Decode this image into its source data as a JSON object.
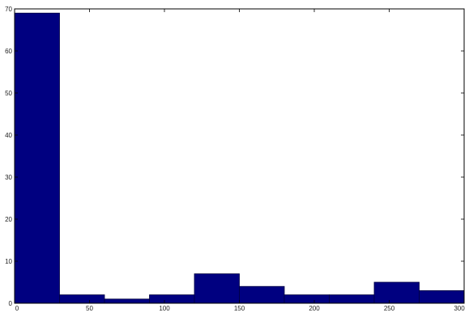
{
  "chart_data": {
    "type": "bar",
    "title": "",
    "xlabel": "",
    "ylabel": "",
    "xlim": [
      0,
      300
    ],
    "ylim": [
      0,
      70
    ],
    "grid": false,
    "bin_width": 30,
    "bins": [
      {
        "start": 0,
        "end": 30,
        "value": 69
      },
      {
        "start": 30,
        "end": 60,
        "value": 2
      },
      {
        "start": 60,
        "end": 90,
        "value": 1
      },
      {
        "start": 90,
        "end": 120,
        "value": 2
      },
      {
        "start": 120,
        "end": 150,
        "value": 7
      },
      {
        "start": 150,
        "end": 180,
        "value": 4
      },
      {
        "start": 180,
        "end": 210,
        "value": 2
      },
      {
        "start": 210,
        "end": 240,
        "value": 2
      },
      {
        "start": 240,
        "end": 270,
        "value": 5
      },
      {
        "start": 270,
        "end": 300,
        "value": 3
      }
    ],
    "x_ticks": [
      0,
      50,
      100,
      150,
      200,
      250,
      300
    ],
    "x_tick_labels": [
      "0",
      "50",
      "100",
      "150",
      "200",
      "250",
      "300"
    ],
    "y_ticks": [
      0,
      10,
      20,
      30,
      40,
      50,
      60,
      70
    ],
    "y_tick_labels": [
      "0",
      "10",
      "20",
      "30",
      "40",
      "50",
      "60",
      "70"
    ],
    "bar_color": "#000080",
    "bar_edge_color": "#000040",
    "axis_color": "#000000"
  }
}
